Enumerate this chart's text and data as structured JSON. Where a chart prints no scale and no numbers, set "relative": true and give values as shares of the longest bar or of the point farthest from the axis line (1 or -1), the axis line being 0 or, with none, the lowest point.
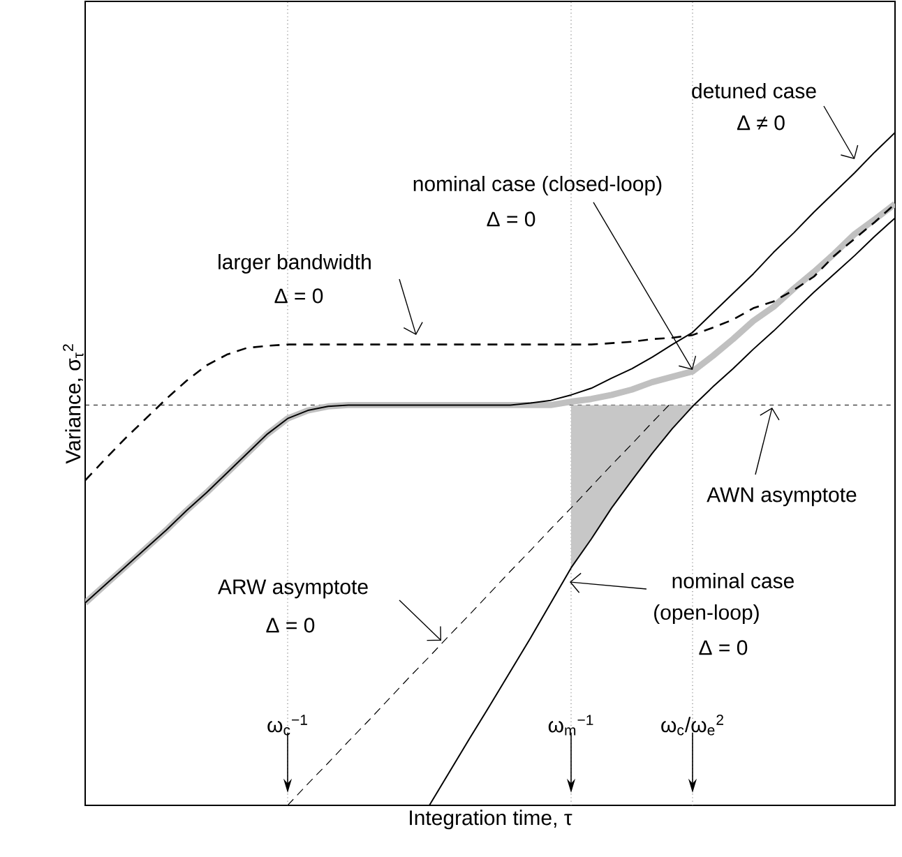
{
  "chart_data": {
    "type": "line",
    "relative": true,
    "xlabel": "Integration time, τ",
    "ylabel": "Variance, σ$_{τ}$$^{2}$",
    "categories": [
      null,
      null,
      null,
      null,
      null,
      null,
      null,
      null,
      null,
      null,
      "ω$_{c}$$^{−1}$",
      null,
      null,
      null,
      null,
      null,
      null,
      null,
      null,
      null,
      null,
      null,
      null,
      null,
      "ω$_{m}$$^{−1}$",
      null,
      null,
      null,
      null,
      null,
      "ω$_{c}$/ω$_{e}$$^{2}$",
      null,
      null,
      null,
      null,
      null,
      null,
      null,
      null,
      null,
      null
    ],
    "grid": "x",
    "series": [
      {
        "color": "#c0c0c0",
        "line_style": "solid",
        "values": [
          0.301,
          0.328,
          0.355,
          0.382,
          0.409,
          0.438,
          0.465,
          0.494,
          0.523,
          0.552,
          0.575,
          0.587,
          0.593,
          0.595,
          0.595,
          0.595,
          0.595,
          0.595,
          0.595,
          0.595,
          0.595,
          0.595,
          0.595,
          0.595,
          0.6,
          0.604,
          0.61,
          0.618,
          0.629,
          0.637,
          0.645,
          0.668,
          0.693,
          0.72,
          0.741,
          0.768,
          0.793,
          0.82,
          0.849,
          0.871,
          0.894
        ]
      },
      {
        "color": "#000000",
        "line_style": "solid",
        "values": [
          0.301,
          0.328,
          0.355,
          0.382,
          0.409,
          0.438,
          0.465,
          0.494,
          0.523,
          0.552,
          0.575,
          0.587,
          0.593,
          0.595,
          0.595,
          0.595,
          0.595,
          0.595,
          0.595,
          0.595,
          0.595,
          0.595,
          0.598,
          0.602,
          0.61,
          0.62,
          0.635,
          0.649,
          0.666,
          0.685,
          0.703,
          0.732,
          0.761,
          0.79,
          0.822,
          0.851,
          0.882,
          0.911,
          0.94,
          0.971,
          1.0
        ]
      },
      {
        "color": "#000000",
        "line_style": "solid",
        "values": [
          null,
          null,
          null,
          null,
          null,
          null,
          null,
          null,
          null,
          null,
          null,
          null,
          null,
          null,
          null,
          null,
          null,
          0,
          0.05,
          0.1,
          0.149,
          0.199,
          0.249,
          0.301,
          0.353,
          0.396,
          0.442,
          0.483,
          0.523,
          0.56,
          0.593,
          0.622,
          0.649,
          0.678,
          0.705,
          0.734,
          0.763,
          0.79,
          0.817,
          0.846,
          0.873
        ],
        "lower": [
          null,
          null,
          null,
          null,
          null,
          null,
          null,
          null,
          null,
          null,
          null,
          null,
          null,
          null,
          null,
          null,
          null,
          null,
          null,
          null,
          null,
          null,
          null,
          null,
          0.353,
          0.396,
          0.442,
          0.483,
          0.523,
          0.56,
          0.593,
          null,
          null,
          null,
          null,
          null,
          null,
          null,
          null,
          null,
          null
        ],
        "upper": [
          null,
          null,
          null,
          null,
          null,
          null,
          null,
          null,
          null,
          null,
          null,
          null,
          null,
          null,
          null,
          null,
          null,
          null,
          null,
          null,
          null,
          null,
          null,
          null,
          0.595,
          0.595,
          0.595,
          0.595,
          0.595,
          0.595,
          0.595,
          null,
          null,
          null,
          null,
          null,
          null,
          null,
          null,
          null,
          null
        ]
      },
      {
        "color": "#000000",
        "line_style": "dashed",
        "values": [
          0.483,
          0.515,
          0.546,
          0.575,
          0.604,
          0.631,
          0.654,
          0.67,
          0.68,
          0.683,
          0.685,
          0.685,
          0.685,
          0.685,
          0.685,
          0.685,
          0.685,
          0.685,
          0.685,
          0.685,
          0.685,
          0.685,
          0.685,
          0.685,
          0.685,
          0.685,
          0.687,
          0.689,
          0.693,
          0.695,
          0.699,
          0.71,
          0.722,
          0.739,
          0.749,
          0.766,
          0.786,
          0.817,
          0.842,
          0.867,
          0.894
        ]
      },
      {
        "color": "#000000",
        "line_style": "dashed",
        "values": [
          null,
          null,
          null,
          null,
          null,
          null,
          null,
          null,
          null,
          null,
          0,
          0.032,
          0.063,
          0.095,
          0.126,
          0.158,
          0.19,
          0.221,
          0.253,
          0.284,
          0.316,
          0.348,
          0.379,
          0.411,
          0.442,
          0.474,
          0.506,
          0.537,
          0.569,
          0.6,
          null,
          null,
          null,
          null,
          null,
          null,
          null,
          null,
          null,
          null,
          null
        ]
      }
    ],
    "ref_lines": [
      {
        "axis": "y",
        "value": 0.595,
        "label": "AWN asymptote",
        "line_style": "dashed"
      }
    ],
    "annotations": [
      "detuned case",
      "Δ ≠ 0",
      "nominal case (closed-loop)",
      "Δ = 0",
      "larger bandwidth",
      "Δ = 0",
      "ARW asymptote",
      "Δ = 0",
      "nominal case",
      "(open-loop)",
      "Δ = 0"
    ]
  }
}
